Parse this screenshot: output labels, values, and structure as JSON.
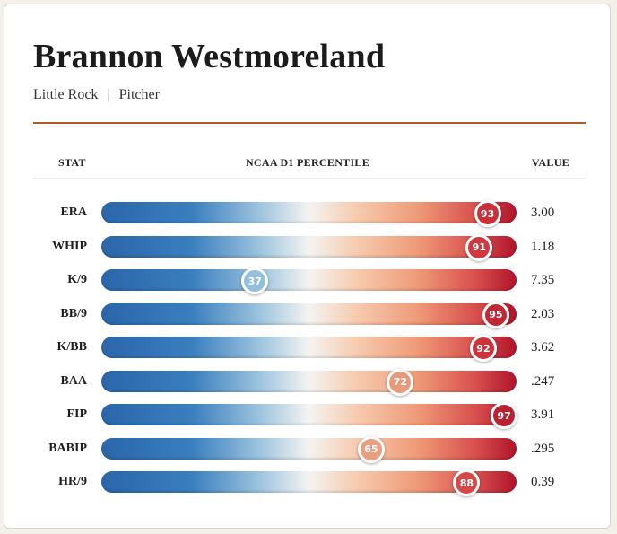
{
  "player": {
    "name": "Brannon Westmoreland",
    "team": "Little Rock",
    "separator": "|",
    "position": "Pitcher"
  },
  "headers": {
    "stat": "STAT",
    "percentile": "NCAA D1 PERCENTILE",
    "value": "VALUE"
  },
  "colors": {
    "accent_rule": "#b5592b",
    "low": "#2a66a9",
    "mid": "#f4f4f2",
    "high": "#b0142b"
  },
  "chart_data": {
    "type": "bar",
    "title": "",
    "xlabel": "NCAA D1 PERCENTILE",
    "ylabel": "STAT",
    "xlim": [
      0,
      100
    ],
    "categories": [
      "ERA",
      "WHIP",
      "K/9",
      "BB/9",
      "K/BB",
      "BAA",
      "FIP",
      "BABIP",
      "HR/9"
    ],
    "percentiles": [
      93,
      91,
      37,
      95,
      92,
      72,
      97,
      65,
      88
    ],
    "values": [
      "3.00",
      "1.18",
      "7.35",
      "2.03",
      "3.62",
      ".247",
      "3.91",
      ".295",
      "0.39"
    ]
  }
}
